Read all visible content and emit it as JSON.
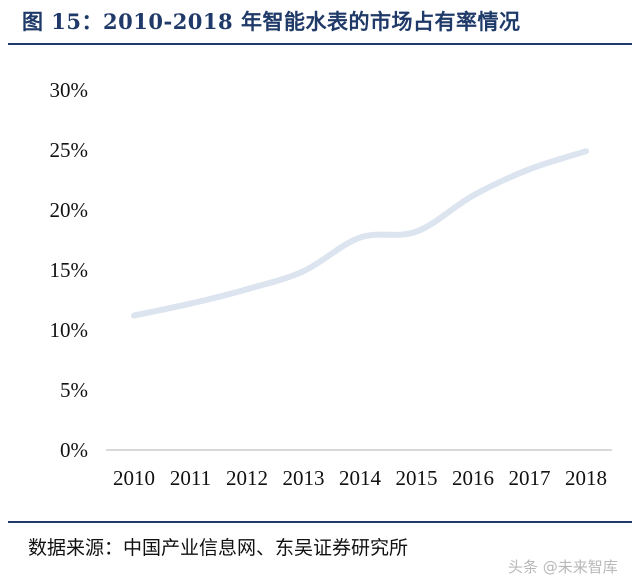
{
  "header": {
    "title": "图 15：2010-2018 年智能水表的市场占有率情况"
  },
  "footer": {
    "source": "数据来源：中国产业信息网、东吴证券研究所"
  },
  "watermark": {
    "text": "头条 @未来智库"
  },
  "colors": {
    "title": "#1f3a68",
    "line": "#dbe4ef",
    "axis": "#d9d9d9"
  },
  "chart_data": {
    "type": "line",
    "title": "",
    "xlabel": "",
    "ylabel": "",
    "categories": [
      "2010",
      "2011",
      "2012",
      "2013",
      "2014",
      "2015",
      "2016",
      "2017",
      "2018"
    ],
    "series": [
      {
        "values": [
          11.2,
          12.2,
          13.4,
          14.9,
          17.7,
          18.2,
          21.2,
          23.4,
          24.9
        ]
      }
    ],
    "ylim": [
      0,
      30
    ],
    "yticks": [
      0,
      5,
      10,
      15,
      20,
      25,
      30
    ],
    "ytick_labels": [
      "0%",
      "5%",
      "10%",
      "15%",
      "20%",
      "25%",
      "30%"
    ],
    "grid": false,
    "legend": "none"
  }
}
